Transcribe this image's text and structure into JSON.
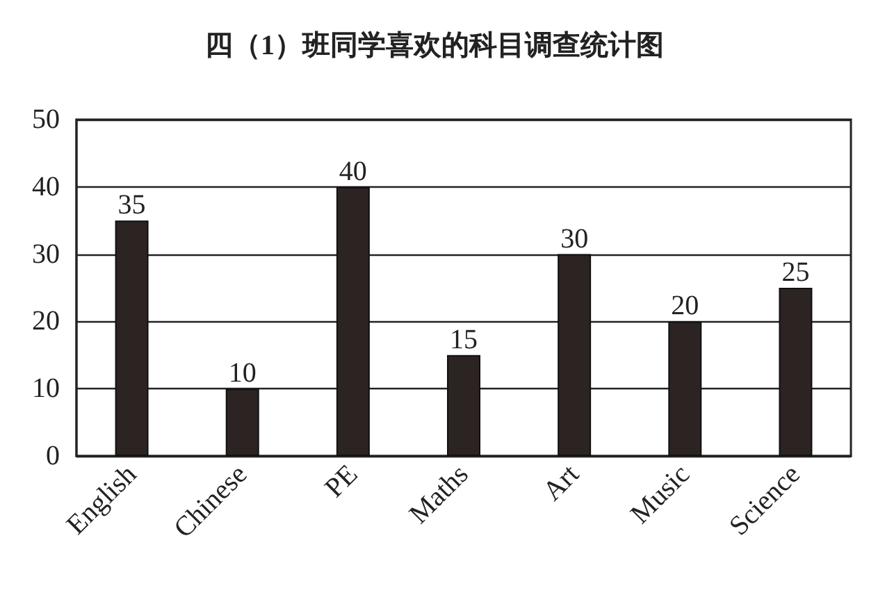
{
  "chart_data": {
    "type": "bar",
    "title": "四（1）班同学喜欢的科目调查统计图",
    "categories": [
      "English",
      "Chinese",
      "PE",
      "Maths",
      "Art",
      "Music",
      "Science"
    ],
    "values": [
      35,
      10,
      40,
      15,
      30,
      20,
      25
    ],
    "color": "#2b2422",
    "ylim": [
      0,
      50
    ],
    "yticks": [
      0,
      10,
      20,
      30,
      40,
      50
    ],
    "grid": "y",
    "data_labels": true
  }
}
